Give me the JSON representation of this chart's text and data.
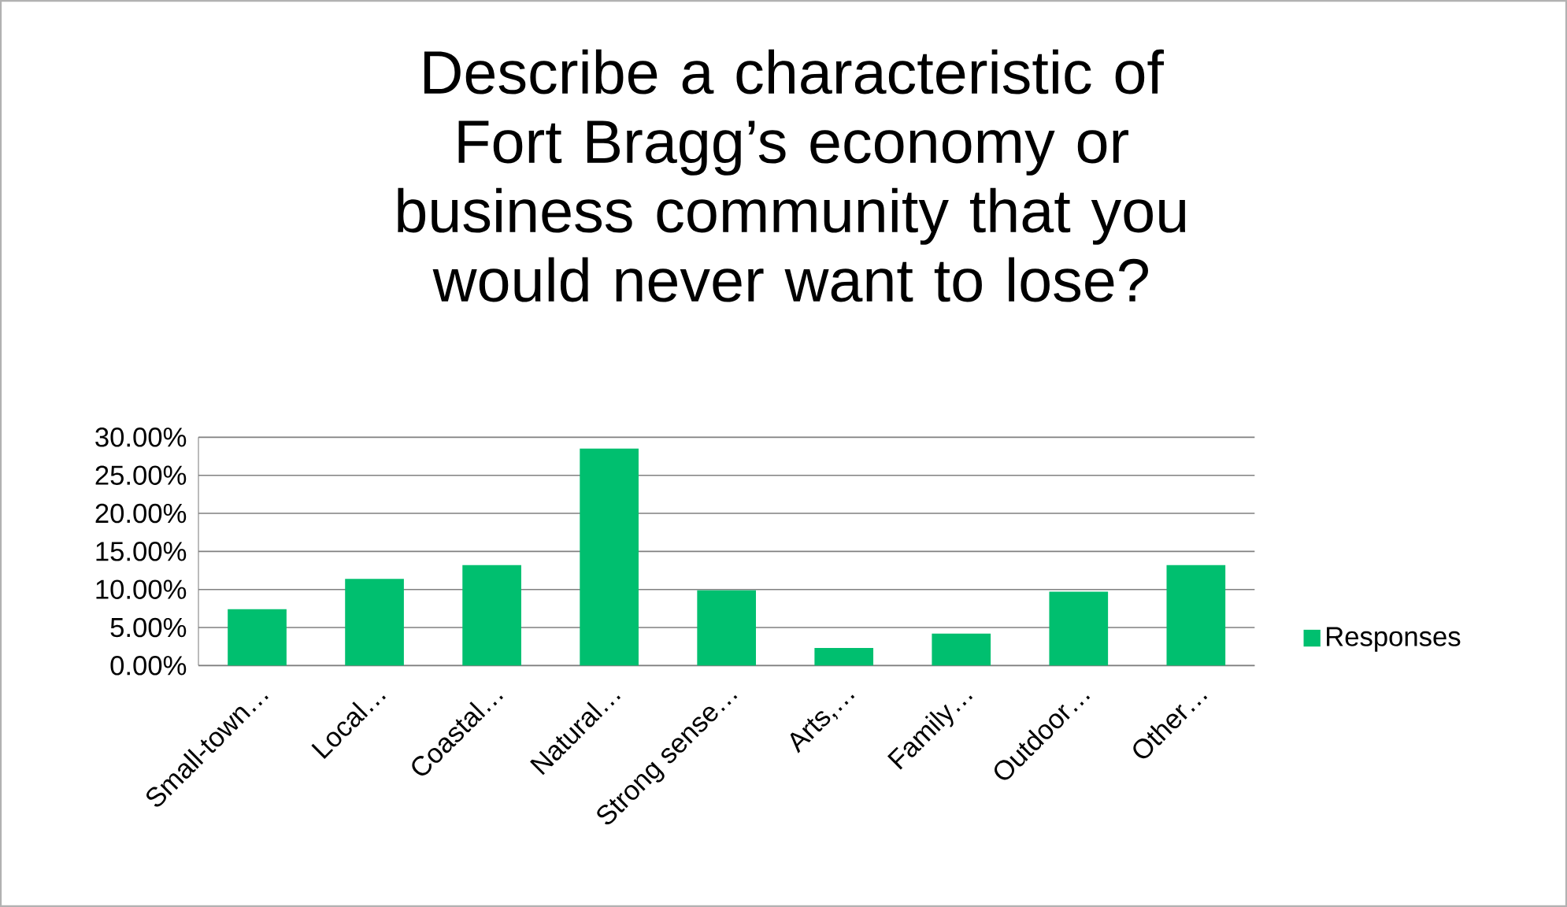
{
  "chart_data": {
    "type": "bar",
    "title": "Describe a characteristic of Fort Bragg’s economy or business community that you would never want to lose?",
    "categories": [
      "Small-town…",
      "Local…",
      "Coastal…",
      "Natural…",
      "Strong sense…",
      "Arts,…",
      "Family…",
      "Outdoor…",
      "Other…"
    ],
    "series": [
      {
        "name": "Responses",
        "color": "#00bf6f",
        "values": [
          7.4,
          11.4,
          13.2,
          28.5,
          9.9,
          2.3,
          4.2,
          9.7,
          13.2
        ]
      }
    ],
    "ylim": [
      0,
      30
    ],
    "yticks": [
      {
        "value": 0,
        "label": "0.00%"
      },
      {
        "value": 5,
        "label": "5.00%"
      },
      {
        "value": 10,
        "label": "10.00%"
      },
      {
        "value": 15,
        "label": "15.00%"
      },
      {
        "value": 20,
        "label": "20.00%"
      },
      {
        "value": 25,
        "label": "25.00%"
      },
      {
        "value": 30,
        "label": "30.00%"
      }
    ],
    "grid": "y",
    "legend": "right"
  }
}
